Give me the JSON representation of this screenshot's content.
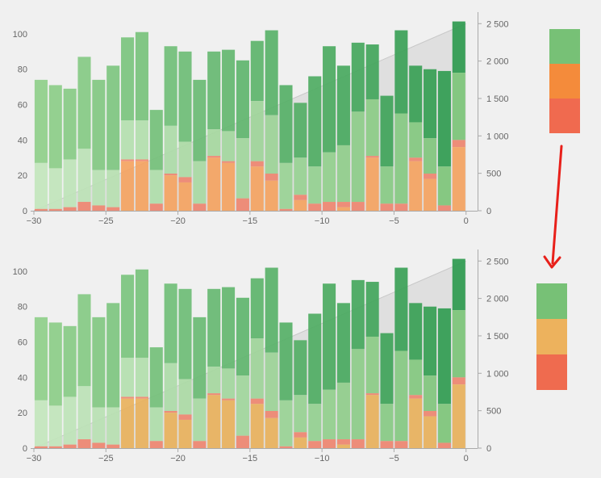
{
  "chart_data": [
    {
      "type": "bar",
      "title": "",
      "xlabel": "",
      "ylabel": "",
      "xlim": [
        -30,
        0.8
      ],
      "ylim": [
        0,
        110
      ],
      "y2lim": [
        0,
        2600
      ],
      "grid": false,
      "x_ticks": [
        -30,
        -25,
        -20,
        -15,
        -10,
        -5,
        0
      ],
      "x_tick_labels": [
        "−30",
        "−25",
        "−20",
        "−15",
        "−10",
        "−5",
        "0"
      ],
      "y_ticks": [
        0,
        20,
        40,
        60,
        80,
        100
      ],
      "y_tick_labels": [
        "0",
        "20",
        "40",
        "60",
        "80",
        "100"
      ],
      "y2_ticks": [
        0,
        500,
        1000,
        1500,
        2000,
        2500
      ],
      "y2_tick_labels": [
        "0",
        "500",
        "1 000",
        "1 500",
        "2 000",
        "2 500"
      ],
      "x": [
        -29.5,
        -28.5,
        -27.5,
        -26.5,
        -25.5,
        -24.5,
        -23.5,
        -22.5,
        -21.5,
        -20.5,
        -19.5,
        -18.5,
        -17.5,
        -16.5,
        -15.5,
        -14.5,
        -13.5,
        -12.5,
        -11.5,
        -10.5,
        -9.5,
        -8.5,
        -7.5,
        -6.5,
        -5.5,
        -4.5,
        -3.5,
        -2.5,
        -1.5,
        -0.5
      ],
      "series": [
        {
          "role": "total",
          "values": [
            74,
            71,
            69,
            87,
            74,
            82,
            98,
            101,
            57,
            93,
            90,
            74,
            90,
            91,
            85,
            96,
            102,
            71,
            61,
            76,
            93,
            82,
            95,
            94,
            65,
            102,
            82,
            80,
            79,
            107
          ]
        },
        {
          "role": "middle",
          "values": [
            27,
            24,
            29,
            35,
            23,
            23,
            51,
            51,
            23,
            48,
            39,
            28,
            46,
            45,
            41,
            62,
            54,
            27,
            30,
            25,
            33,
            37,
            56,
            63,
            25,
            55,
            50,
            41,
            25,
            78
          ]
        },
        {
          "role": "red",
          "values": [
            1,
            1,
            2,
            5,
            3,
            2,
            29,
            29,
            4,
            21,
            19,
            4,
            31,
            28,
            7,
            28,
            21,
            1,
            9,
            4,
            5,
            5,
            5,
            31,
            4,
            4,
            30,
            21,
            3,
            40
          ]
        },
        {
          "role": "orange",
          "values": [
            0,
            0,
            0,
            0,
            0,
            0,
            28,
            28,
            0,
            20,
            16,
            0,
            30,
            27,
            0,
            25,
            17,
            0,
            6,
            0,
            0,
            2,
            0,
            30,
            0,
            0,
            28,
            18,
            0,
            36
          ]
        }
      ],
      "area": {
        "y2_start": 0,
        "y2_end": 2500
      }
    },
    {
      "type": "bar",
      "title": "",
      "xlabel": "",
      "ylabel": "",
      "xlim": [
        -30,
        0.8
      ],
      "ylim": [
        0,
        110
      ],
      "y2lim": [
        0,
        2600
      ],
      "grid": false,
      "x_ticks": [
        -30,
        -25,
        -20,
        -15,
        -10,
        -5,
        0
      ],
      "x_tick_labels": [
        "−30",
        "−25",
        "−20",
        "−15",
        "−10",
        "−5",
        "0"
      ],
      "y_ticks": [
        0,
        20,
        40,
        60,
        80,
        100
      ],
      "y_tick_labels": [
        "0",
        "20",
        "40",
        "60",
        "80",
        "100"
      ],
      "y2_ticks": [
        0,
        500,
        1000,
        1500,
        2000,
        2500
      ],
      "y2_tick_labels": [
        "0",
        "500",
        "1 000",
        "1 500",
        "2 000",
        "2 500"
      ],
      "x": [
        -29.5,
        -28.5,
        -27.5,
        -26.5,
        -25.5,
        -24.5,
        -23.5,
        -22.5,
        -21.5,
        -20.5,
        -19.5,
        -18.5,
        -17.5,
        -16.5,
        -15.5,
        -14.5,
        -13.5,
        -12.5,
        -11.5,
        -10.5,
        -9.5,
        -8.5,
        -7.5,
        -6.5,
        -5.5,
        -4.5,
        -3.5,
        -2.5,
        -1.5,
        -0.5
      ],
      "series": [
        {
          "role": "total",
          "values": [
            74,
            71,
            69,
            87,
            74,
            82,
            98,
            101,
            57,
            93,
            90,
            74,
            90,
            91,
            85,
            96,
            102,
            71,
            61,
            76,
            93,
            82,
            95,
            94,
            65,
            102,
            82,
            80,
            79,
            107
          ]
        },
        {
          "role": "middle",
          "values": [
            27,
            24,
            29,
            35,
            23,
            23,
            51,
            51,
            23,
            48,
            39,
            28,
            46,
            45,
            41,
            62,
            54,
            27,
            30,
            25,
            33,
            37,
            56,
            63,
            25,
            55,
            50,
            41,
            25,
            78
          ]
        },
        {
          "role": "red",
          "values": [
            1,
            1,
            2,
            5,
            3,
            2,
            29,
            29,
            4,
            21,
            19,
            4,
            31,
            28,
            7,
            28,
            21,
            1,
            9,
            4,
            5,
            5,
            5,
            31,
            4,
            4,
            30,
            21,
            3,
            40
          ]
        },
        {
          "role": "orange",
          "values": [
            0,
            0,
            0,
            0,
            0,
            0,
            28,
            28,
            0,
            20,
            16,
            0,
            30,
            27,
            0,
            25,
            17,
            0,
            6,
            0,
            0,
            2,
            0,
            30,
            0,
            0,
            28,
            18,
            0,
            36
          ]
        }
      ],
      "area": {
        "y2_start": 0,
        "y2_end": 2500
      }
    }
  ],
  "colors": {
    "bg": "#f0f0f0",
    "axis": "#aaaaaa",
    "tick_text": "#666666",
    "area_fill": "#d9d9d9",
    "area_line": "#c8c8c8",
    "green_light": "#b1deaa",
    "green_mid": "#82c77c",
    "green_dark": "#3b9e54",
    "red": "#f07f67",
    "orange_top": "#f5a25e",
    "orange_bottom": "#e9b05a",
    "arrow": "#e8201a"
  },
  "swatches": {
    "top": [
      "#77c176",
      "#f48b3b",
      "#f06a4f"
    ],
    "bottom": [
      "#77c176",
      "#edb25d",
      "#ef6b4f"
    ]
  }
}
